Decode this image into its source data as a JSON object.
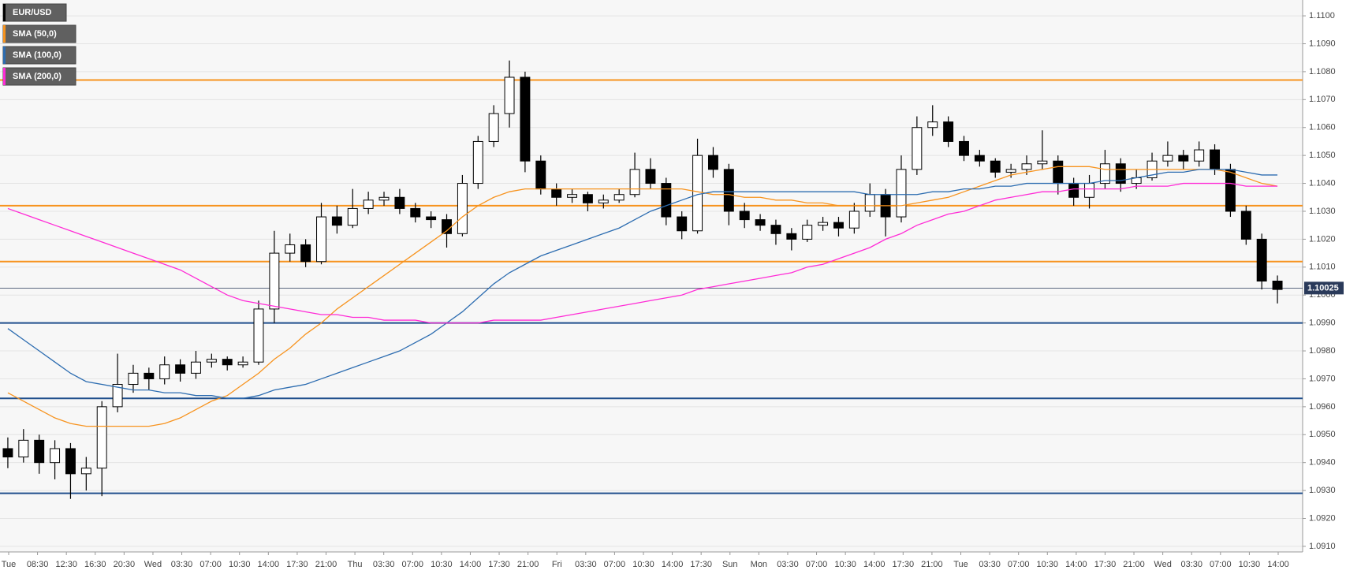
{
  "chart_data": {
    "type": "candlestick",
    "title": "EUR/USD",
    "ylim": [
      1.0908,
      1.1102
    ],
    "yticks": [
      {
        "value": 1.091,
        "label": "1.0910"
      },
      {
        "value": 1.092,
        "label": "1.0920"
      },
      {
        "value": 1.093,
        "label": "1.0930"
      },
      {
        "value": 1.094,
        "label": "1.0940"
      },
      {
        "value": 1.095,
        "label": "1.0950"
      },
      {
        "value": 1.096,
        "label": "1.0960"
      },
      {
        "value": 1.097,
        "label": "1.0970"
      },
      {
        "value": 1.098,
        "label": "1.0980"
      },
      {
        "value": 1.099,
        "label": "1.0990"
      },
      {
        "value": 1.1,
        "label": "1.1000"
      },
      {
        "value": 1.101,
        "label": "1.1010"
      },
      {
        "value": 1.102,
        "label": "1.1020"
      },
      {
        "value": 1.103,
        "label": "1.1030"
      },
      {
        "value": 1.104,
        "label": "1.1040"
      },
      {
        "value": 1.105,
        "label": "1.1050"
      },
      {
        "value": 1.106,
        "label": "1.1060"
      },
      {
        "value": 1.107,
        "label": "1.1070"
      },
      {
        "value": 1.108,
        "label": "1.1080"
      },
      {
        "value": 1.109,
        "label": "1.1090"
      },
      {
        "value": 1.11,
        "label": "1.1100"
      }
    ],
    "x_labels": [
      "Tue",
      "08:30",
      "12:30",
      "16:30",
      "20:30",
      "Wed",
      "03:30",
      "07:00",
      "10:30",
      "14:00",
      "17:30",
      "21:00",
      "Thu",
      "03:30",
      "07:00",
      "10:30",
      "14:00",
      "17:30",
      "21:00",
      "Fri",
      "03:30",
      "07:00",
      "10:30",
      "14:00",
      "17:30",
      "Sun",
      "Mon",
      "03:30",
      "07:00",
      "10:30",
      "14:00",
      "17:30",
      "21:00",
      "Tue",
      "03:30",
      "07:00",
      "10:30",
      "14:00",
      "17:30",
      "21:00",
      "Wed",
      "03:30",
      "07:00",
      "10:30",
      "14:00"
    ],
    "open": [
      1.0945,
      1.0942,
      1.0948,
      1.094,
      1.0945,
      1.0936,
      1.0938,
      1.096,
      1.0968,
      1.0972,
      1.097,
      1.0975,
      1.0972,
      1.0976,
      1.0977,
      1.0975,
      1.0976,
      1.0995,
      1.1015,
      1.1018,
      1.1012,
      1.1028,
      1.1025,
      1.1031,
      1.1034,
      1.1035,
      1.1031,
      1.1028,
      1.1027,
      1.1022,
      1.104,
      1.1055,
      1.1065,
      1.1078,
      1.1048,
      1.1038,
      1.1035,
      1.1036,
      1.1033,
      1.1034,
      1.1036,
      1.1045,
      1.104,
      1.1028,
      1.1023,
      1.105,
      1.1045,
      1.103,
      1.1027,
      1.1025,
      1.1022,
      1.102,
      1.1025,
      1.1026,
      1.1024,
      1.103,
      1.1036,
      1.1028,
      1.1045,
      1.106,
      1.1062,
      1.1055,
      1.105,
      1.1048,
      1.1044,
      1.1045,
      1.1047,
      1.1048,
      1.104,
      1.1035,
      1.104,
      1.1047,
      1.104,
      1.1042,
      1.1048,
      1.105,
      1.1048,
      1.1052,
      1.1045,
      1.103,
      1.102,
      1.1005
    ],
    "high": [
      1.0949,
      1.0952,
      1.095,
      1.0948,
      1.0947,
      1.0942,
      1.0962,
      1.0979,
      1.0975,
      1.0974,
      1.0978,
      1.0977,
      1.098,
      1.0979,
      1.0978,
      1.0978,
      1.0998,
      1.1023,
      1.1022,
      1.102,
      1.1033,
      1.1032,
      1.1038,
      1.1037,
      1.1037,
      1.1038,
      1.1033,
      1.103,
      1.1029,
      1.1043,
      1.1057,
      1.1068,
      1.1084,
      1.108,
      1.105,
      1.104,
      1.1038,
      1.1037,
      1.1036,
      1.1038,
      1.1051,
      1.1049,
      1.1042,
      1.103,
      1.1056,
      1.1053,
      1.1047,
      1.1033,
      1.1029,
      1.1027,
      1.1024,
      1.1027,
      1.1028,
      1.1028,
      1.1033,
      1.104,
      1.1038,
      1.105,
      1.1064,
      1.1068,
      1.1064,
      1.1057,
      1.1052,
      1.1049,
      1.1047,
      1.105,
      1.1059,
      1.105,
      1.1042,
      1.1043,
      1.1052,
      1.1049,
      1.1045,
      1.1051,
      1.1055,
      1.1052,
      1.1055,
      1.1054,
      1.1047,
      1.1032,
      1.1022,
      1.1007
    ],
    "low": [
      1.0938,
      1.094,
      1.0936,
      1.0934,
      1.0927,
      1.093,
      1.0928,
      1.0958,
      1.0965,
      1.0966,
      1.0968,
      1.0969,
      1.097,
      1.0974,
      1.0973,
      1.0974,
      1.0975,
      1.099,
      1.1012,
      1.101,
      1.1011,
      1.1022,
      1.1024,
      1.1029,
      1.1032,
      1.1029,
      1.1026,
      1.1024,
      1.1017,
      1.1021,
      1.1038,
      1.1053,
      1.106,
      1.1044,
      1.1036,
      1.1032,
      1.1033,
      1.103,
      1.1031,
      1.1033,
      1.1035,
      1.1038,
      1.1025,
      1.102,
      1.1022,
      1.1042,
      1.1025,
      1.1024,
      1.1023,
      1.1018,
      1.1016,
      1.1019,
      1.1023,
      1.1021,
      1.1022,
      1.1028,
      1.1021,
      1.1026,
      1.1043,
      1.1057,
      1.1053,
      1.1048,
      1.1046,
      1.1042,
      1.1042,
      1.1043,
      1.1045,
      1.1036,
      1.1032,
      1.1031,
      1.1038,
      1.1037,
      1.1038,
      1.1041,
      1.1046,
      1.1045,
      1.1046,
      1.1043,
      1.1028,
      1.1018,
      1.1002,
      1.0997
    ],
    "close": [
      1.0942,
      1.0948,
      1.094,
      1.0945,
      1.0936,
      1.0938,
      1.096,
      1.0968,
      1.0972,
      1.097,
      1.0975,
      1.0972,
      1.0976,
      1.0977,
      1.0975,
      1.0976,
      1.0995,
      1.1015,
      1.1018,
      1.1012,
      1.1028,
      1.1025,
      1.1031,
      1.1034,
      1.1035,
      1.1031,
      1.1028,
      1.1027,
      1.1022,
      1.104,
      1.1055,
      1.1065,
      1.1078,
      1.1048,
      1.1038,
      1.1035,
      1.1036,
      1.1033,
      1.1034,
      1.1036,
      1.1045,
      1.104,
      1.1028,
      1.1023,
      1.105,
      1.1045,
      1.103,
      1.1027,
      1.1025,
      1.1022,
      1.102,
      1.1025,
      1.1026,
      1.1024,
      1.103,
      1.1036,
      1.1028,
      1.1045,
      1.106,
      1.1062,
      1.1055,
      1.105,
      1.1048,
      1.1044,
      1.1045,
      1.1047,
      1.1048,
      1.104,
      1.1035,
      1.104,
      1.1047,
      1.104,
      1.1042,
      1.1048,
      1.105,
      1.1048,
      1.1052,
      1.1045,
      1.103,
      1.102,
      1.1005,
      1.1002
    ],
    "series": [
      {
        "name": "SMA (50,0)",
        "color": "#f7931e",
        "values": [
          1.0965,
          1.0962,
          1.0959,
          1.0956,
          1.0954,
          1.0953,
          1.0953,
          1.0953,
          1.0953,
          1.0953,
          1.0954,
          1.0956,
          1.0959,
          1.0962,
          1.0964,
          1.0968,
          1.0972,
          1.0977,
          1.0981,
          1.0986,
          1.099,
          1.0995,
          1.0999,
          1.1003,
          1.1007,
          1.1011,
          1.1015,
          1.1019,
          1.1023,
          1.1028,
          1.1032,
          1.1035,
          1.1037,
          1.1038,
          1.1038,
          1.1038,
          1.1038,
          1.1038,
          1.1038,
          1.1038,
          1.1038,
          1.1038,
          1.1038,
          1.1038,
          1.1037,
          1.1036,
          1.1036,
          1.1035,
          1.1035,
          1.1034,
          1.1034,
          1.1033,
          1.1033,
          1.1032,
          1.1032,
          1.1032,
          1.1032,
          1.1032,
          1.1033,
          1.1034,
          1.1035,
          1.1037,
          1.1039,
          1.1041,
          1.1043,
          1.1044,
          1.1045,
          1.1046,
          1.1046,
          1.1046,
          1.1045,
          1.1045,
          1.1045,
          1.1045,
          1.1045,
          1.1045,
          1.1045,
          1.1045,
          1.1044,
          1.1042,
          1.104,
          1.1039
        ]
      },
      {
        "name": "SMA (100,0)",
        "color": "#2c6cb0",
        "values": [
          1.0988,
          1.0984,
          1.098,
          1.0976,
          1.0972,
          1.0969,
          1.0968,
          1.0967,
          1.0966,
          1.0966,
          1.0965,
          1.0965,
          1.0964,
          1.0964,
          1.0963,
          1.0963,
          1.0964,
          1.0966,
          1.0967,
          1.0968,
          1.097,
          1.0972,
          1.0974,
          1.0976,
          1.0978,
          1.098,
          1.0983,
          1.0986,
          1.099,
          1.0994,
          1.0999,
          1.1004,
          1.1008,
          1.1011,
          1.1014,
          1.1016,
          1.1018,
          1.102,
          1.1022,
          1.1024,
          1.1027,
          1.103,
          1.1032,
          1.1034,
          1.1036,
          1.1037,
          1.1037,
          1.1037,
          1.1037,
          1.1037,
          1.1037,
          1.1037,
          1.1037,
          1.1037,
          1.1037,
          1.1036,
          1.1036,
          1.1036,
          1.1036,
          1.1037,
          1.1037,
          1.1038,
          1.1038,
          1.1039,
          1.1039,
          1.104,
          1.104,
          1.104,
          1.104,
          1.104,
          1.1041,
          1.1041,
          1.1042,
          1.1043,
          1.1044,
          1.1044,
          1.1045,
          1.1045,
          1.1045,
          1.1044,
          1.1043,
          1.1043
        ]
      },
      {
        "name": "SMA (200,0)",
        "color": "#ff2bd6",
        "values": [
          1.1031,
          1.1029,
          1.1027,
          1.1025,
          1.1023,
          1.1021,
          1.1019,
          1.1017,
          1.1015,
          1.1013,
          1.1011,
          1.1009,
          1.1006,
          1.1003,
          1.1,
          1.0998,
          1.0997,
          1.0996,
          1.0995,
          1.0994,
          1.0993,
          1.0993,
          1.0992,
          1.0992,
          1.0991,
          1.0991,
          1.0991,
          1.099,
          1.099,
          1.099,
          1.099,
          1.0991,
          1.0991,
          1.0991,
          1.0991,
          1.0992,
          1.0993,
          1.0994,
          1.0995,
          1.0996,
          1.0997,
          1.0998,
          1.0999,
          1.1,
          1.1002,
          1.1003,
          1.1004,
          1.1005,
          1.1006,
          1.1007,
          1.1008,
          1.101,
          1.1011,
          1.1013,
          1.1015,
          1.1017,
          1.102,
          1.1022,
          1.1025,
          1.1027,
          1.1029,
          1.103,
          1.1032,
          1.1034,
          1.1035,
          1.1036,
          1.1037,
          1.1037,
          1.1038,
          1.1038,
          1.1038,
          1.1038,
          1.1039,
          1.1039,
          1.1039,
          1.104,
          1.104,
          1.104,
          1.104,
          1.1039,
          1.1039,
          1.1039
        ]
      }
    ],
    "hlines": [
      {
        "value": 1.1077,
        "color": "#f7931e"
      },
      {
        "value": 1.1032,
        "color": "#f7931e"
      },
      {
        "value": 1.1012,
        "color": "#f7931e"
      },
      {
        "value": 1.099,
        "color": "#1f4e8c"
      },
      {
        "value": 1.0963,
        "color": "#1f4e8c"
      },
      {
        "value": 1.0929,
        "color": "#1f4e8c"
      }
    ],
    "last_price": 1.10025,
    "grid": true
  }
}
